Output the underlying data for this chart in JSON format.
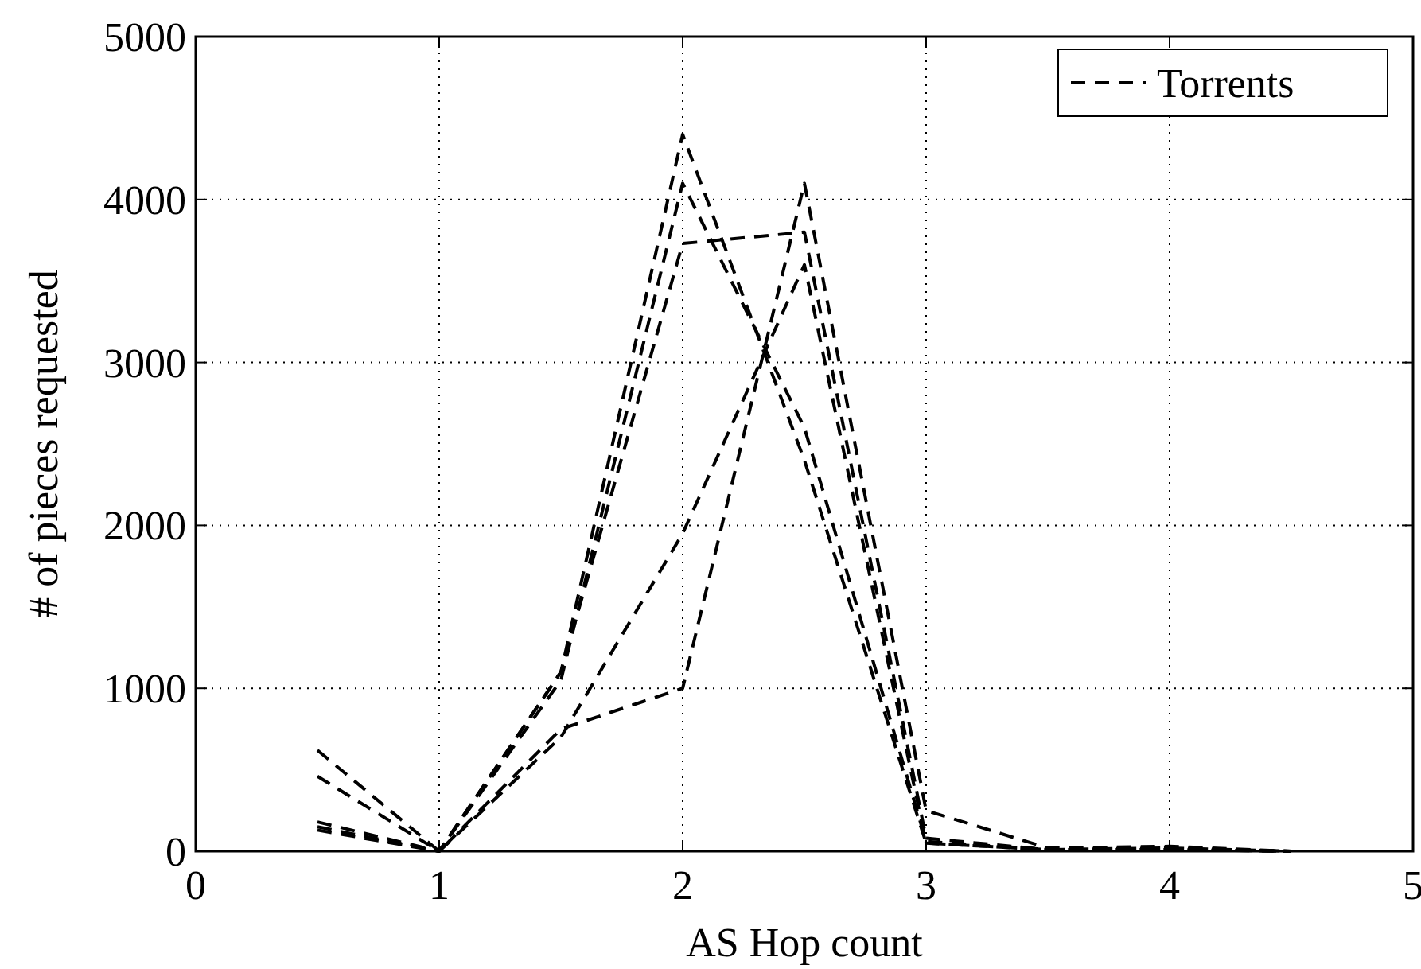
{
  "chart_data": {
    "type": "line",
    "xlabel": "AS Hop count",
    "ylabel": "# of pieces requested",
    "x": [
      0.5,
      1,
      1.5,
      2,
      2.5,
      3,
      3.5,
      4,
      4.5
    ],
    "series": [
      {
        "name": "Torrents",
        "color": "#000000",
        "values": [
          150,
          0,
          1100,
          4400,
          2400,
          50,
          10,
          20,
          0
        ]
      },
      {
        "color": "#000000",
        "values": [
          130,
          0,
          1050,
          4100,
          2600,
          60,
          10,
          10,
          0
        ]
      },
      {
        "color": "#000000",
        "values": [
          180,
          0,
          1100,
          3730,
          3800,
          80,
          10,
          20,
          0
        ]
      },
      {
        "color": "#000000",
        "values": [
          620,
          0,
          750,
          1000,
          4100,
          250,
          20,
          30,
          0
        ]
      },
      {
        "color": "#000000",
        "values": [
          460,
          0,
          700,
          1950,
          3600,
          50,
          10,
          10,
          0
        ]
      }
    ],
    "xlim": [
      0,
      5
    ],
    "ylim": [
      0,
      5000
    ],
    "xticks": [
      0,
      1,
      2,
      3,
      4,
      5
    ],
    "yticks": [
      0,
      1000,
      2000,
      3000,
      4000,
      5000
    ],
    "grid": true,
    "legend": "top right",
    "line_style": "dashed"
  }
}
